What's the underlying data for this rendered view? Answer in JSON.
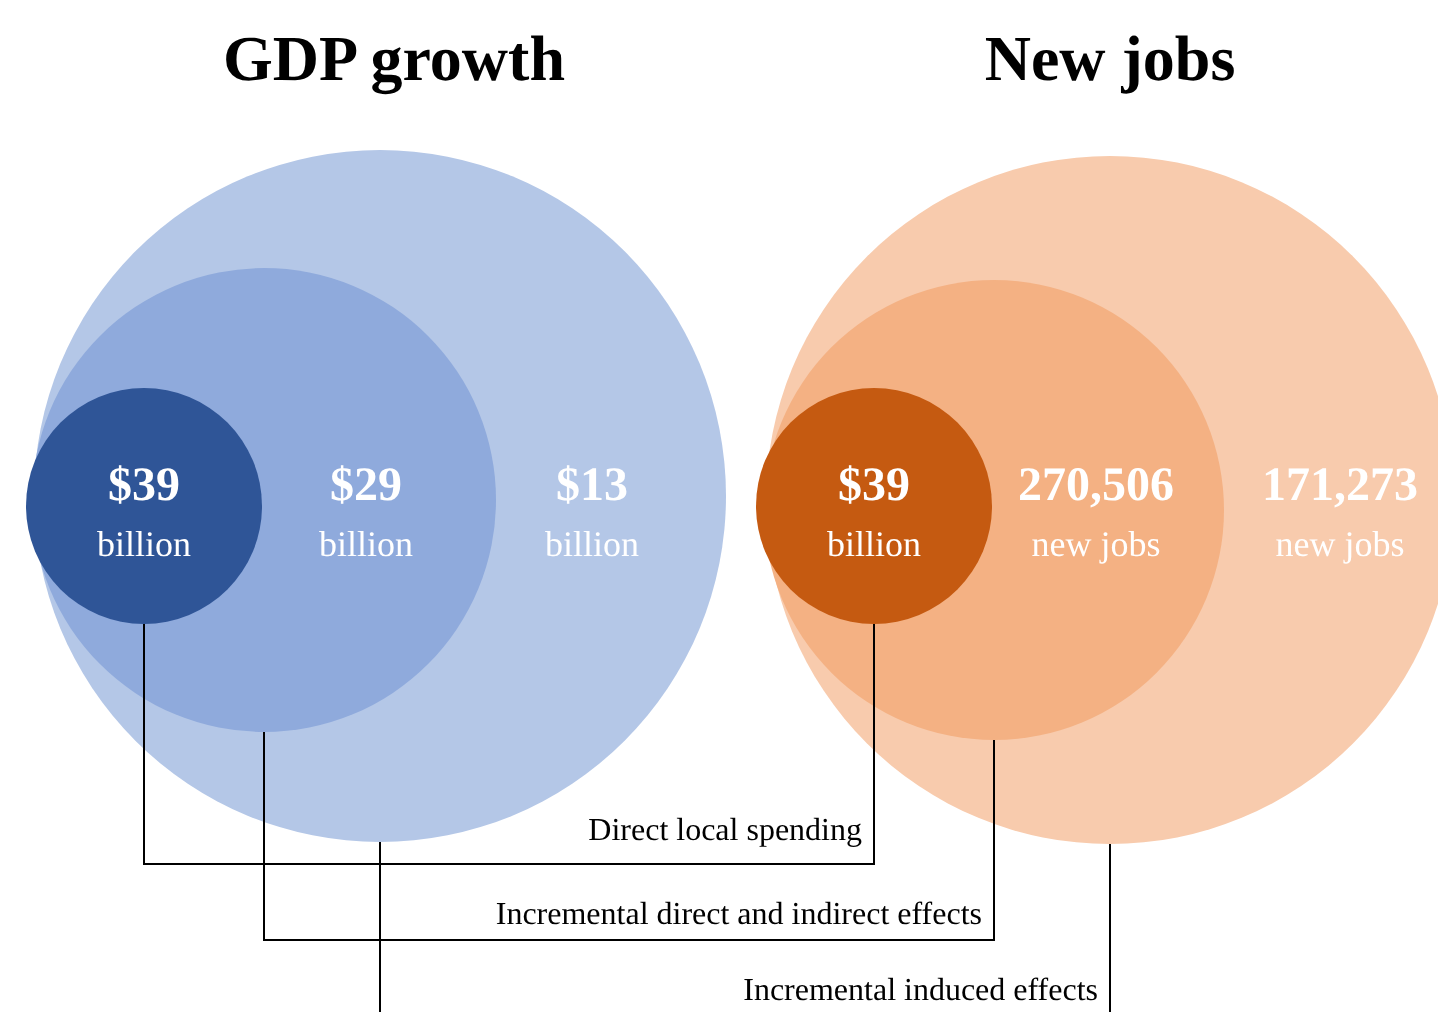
{
  "chart_data": [
    {
      "type": "other",
      "title": "GDP growth",
      "categories": [
        null,
        null,
        null
      ],
      "colors": [
        "#2f5597",
        "#8faadc",
        "#b4c7e7"
      ],
      "values": [
        39,
        29,
        13
      ],
      "value_labels": [
        "$39 billion",
        "$29 billion",
        "$13 billion"
      ]
    },
    {
      "type": "other",
      "title": "New jobs",
      "categories": [
        null,
        null,
        null
      ],
      "colors": [
        "#c55a11",
        "#f4b183",
        "#f8cbad"
      ],
      "values": [
        39,
        270506,
        171273
      ],
      "value_labels": [
        "$39 billion",
        "270,506 new jobs",
        "171,273 new jobs"
      ]
    },
    {
      "type": "other",
      "annotations": [
        "Direct local spending",
        "Incremental direct and indirect effects",
        "Incremental induced effects"
      ]
    }
  ]
}
